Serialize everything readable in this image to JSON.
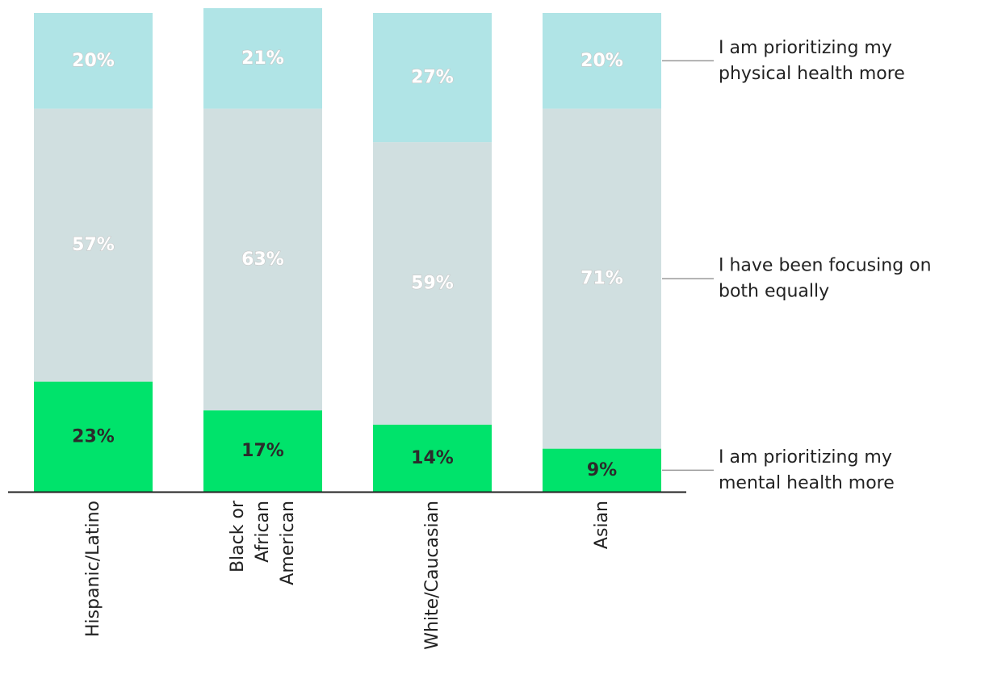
{
  "chart_data": {
    "type": "bar",
    "stacked": true,
    "orientation": "vertical",
    "categories": [
      "Hispanic/Latino",
      "Black or African American",
      "White/Caucasian",
      "Asian"
    ],
    "category_label_lines": [
      [
        "Hispanic/Latino"
      ],
      [
        "Black or",
        "African",
        "American"
      ],
      [
        "White/Caucasian"
      ],
      [
        "Asian"
      ]
    ],
    "series": [
      {
        "name": "I am prioritizing my mental health more",
        "legend_lines": [
          "I am prioritizing my",
          "mental health more"
        ],
        "values": [
          23,
          17,
          14,
          9
        ],
        "value_labels": [
          "23%",
          "17%",
          "14%",
          "9%"
        ],
        "color": "#00e36b",
        "label_color": "#2b2b2b"
      },
      {
        "name": "I have been focusing on both equally",
        "legend_lines": [
          "I have been focusing on",
          "both equally"
        ],
        "values": [
          57,
          63,
          59,
          71
        ],
        "value_labels": [
          "57%",
          "63%",
          "59%",
          "71%"
        ],
        "color": "#d0dfe0",
        "label_color": "#ffffff"
      },
      {
        "name": "I am prioritizing my physical health more",
        "legend_lines": [
          "I am prioritizing my",
          "physical health more"
        ],
        "values": [
          20,
          21,
          27,
          20
        ],
        "value_labels": [
          "20%",
          "21%",
          "27%",
          "20%"
        ],
        "color": "#b0e4e6",
        "label_color": "#ffffff"
      }
    ],
    "title": "",
    "xlabel": "",
    "ylabel": "",
    "legend_position": "right",
    "grid": false,
    "axis_color": "#222222",
    "legend_line_color": "#999999"
  }
}
